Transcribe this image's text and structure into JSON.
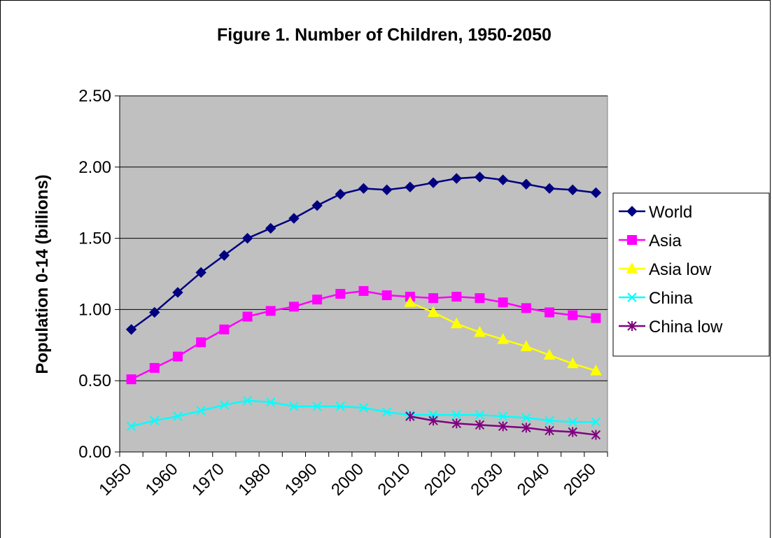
{
  "chart_data": {
    "type": "line",
    "title": "Figure 1. Number of Children, 1950-2050",
    "ylabel": "Population 0-14 (billions)",
    "xlabel": "",
    "ylim": [
      0,
      2.5
    ],
    "y_ticks": [
      "0.00",
      "0.50",
      "1.00",
      "1.50",
      "2.00",
      "2.50"
    ],
    "x_tick_labels": [
      "1950",
      "1960",
      "1970",
      "1980",
      "1990",
      "2000",
      "2010",
      "2020",
      "2030",
      "2040",
      "2050"
    ],
    "x": [
      1950,
      1955,
      1960,
      1965,
      1970,
      1975,
      1980,
      1985,
      1990,
      1995,
      2000,
      2005,
      2010,
      2015,
      2020,
      2025,
      2030,
      2035,
      2040,
      2045,
      2050
    ],
    "grid": "horizontal",
    "plot_background": "#c0c0c0",
    "legend_position": "right",
    "series": [
      {
        "name": "World",
        "color": "#000080",
        "marker": "diamond",
        "values": [
          0.86,
          0.98,
          1.12,
          1.26,
          1.38,
          1.5,
          1.57,
          1.64,
          1.73,
          1.81,
          1.85,
          1.84,
          1.86,
          1.89,
          1.92,
          1.93,
          1.91,
          1.88,
          1.85,
          1.84,
          1.82
        ]
      },
      {
        "name": "Asia",
        "color": "#ff00ff",
        "marker": "square",
        "values": [
          0.51,
          0.59,
          0.67,
          0.77,
          0.86,
          0.95,
          0.99,
          1.02,
          1.07,
          1.11,
          1.13,
          1.1,
          1.09,
          1.08,
          1.09,
          1.08,
          1.05,
          1.01,
          0.98,
          0.96,
          0.94
        ]
      },
      {
        "name": "Asia low",
        "color": "#ffff00",
        "marker": "triangle",
        "values": [
          null,
          null,
          null,
          null,
          null,
          null,
          null,
          null,
          null,
          null,
          null,
          null,
          1.05,
          0.98,
          0.9,
          0.84,
          0.79,
          0.74,
          0.68,
          0.62,
          0.57
        ]
      },
      {
        "name": "China",
        "color": "#00ffff",
        "marker": "x",
        "values": [
          0.18,
          0.22,
          0.25,
          0.29,
          0.33,
          0.36,
          0.35,
          0.32,
          0.32,
          0.32,
          0.31,
          0.28,
          0.26,
          0.26,
          0.26,
          0.26,
          0.25,
          0.24,
          0.22,
          0.21,
          0.21
        ]
      },
      {
        "name": "China low",
        "color": "#800080",
        "marker": "star",
        "values": [
          null,
          null,
          null,
          null,
          null,
          null,
          null,
          null,
          null,
          null,
          null,
          null,
          0.25,
          0.22,
          0.2,
          0.19,
          0.18,
          0.17,
          0.15,
          0.14,
          0.12
        ]
      }
    ]
  }
}
